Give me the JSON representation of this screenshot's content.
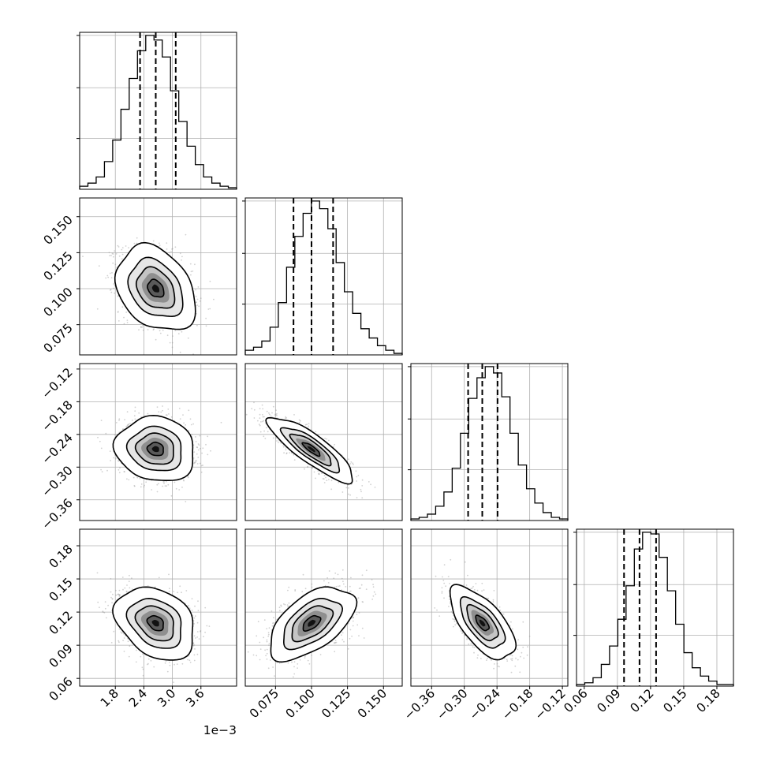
{
  "chart_data": {
    "type": "corner",
    "n_params": 4,
    "exponent_label": "1e−3",
    "params": [
      {
        "range": [
          0.00105,
          0.00435
        ],
        "ticks": [
          0.0018,
          0.0024,
          0.003,
          0.0036
        ],
        "tick_labels": [
          "1.8",
          "2.4",
          "3.0",
          "3.6"
        ],
        "quantiles": [
          0.00232,
          0.00265,
          0.00307
        ],
        "median": 0.00265,
        "sigma": 0.00038
      },
      {
        "range": [
          0.054,
          0.163
        ],
        "ticks": [
          0.075,
          0.1,
          0.125,
          0.15
        ],
        "tick_labels": [
          "0.075",
          "0.100",
          "0.125",
          "0.150"
        ],
        "quantiles": [
          0.0875,
          0.1,
          0.115
        ],
        "median": 0.1,
        "sigma": 0.0135
      },
      {
        "range": [
          -0.398,
          -0.11
        ],
        "ticks": [
          -0.36,
          -0.3,
          -0.24,
          -0.18,
          -0.12
        ],
        "tick_labels": [
          "−0.36",
          "−0.30",
          "−0.24",
          "−0.18",
          "−0.12"
        ],
        "quantiles": [
          -0.293,
          -0.267,
          -0.239
        ],
        "median": -0.267,
        "sigma": 0.027
      },
      {
        "range": [
          0.053,
          0.195
        ],
        "ticks": [
          0.06,
          0.09,
          0.12,
          0.15,
          0.18
        ],
        "tick_labels": [
          "0.06",
          "0.09",
          "0.12",
          "0.15",
          "0.18"
        ],
        "quantiles": [
          0.096,
          0.11,
          0.125
        ],
        "median": 0.11,
        "sigma": 0.015
      }
    ],
    "correlations": [
      {
        "row": 1,
        "col": 0,
        "rho": -0.3
      },
      {
        "row": 2,
        "col": 0,
        "rho": -0.1
      },
      {
        "row": 2,
        "col": 1,
        "rho": -0.85
      },
      {
        "row": 3,
        "col": 0,
        "rho": -0.3
      },
      {
        "row": 3,
        "col": 1,
        "rho": 0.55
      },
      {
        "row": 3,
        "col": 2,
        "rho": -0.65
      }
    ],
    "histograms": [
      [
        2,
        4,
        8,
        18,
        32,
        52,
        72,
        90,
        100,
        97,
        86,
        64,
        44,
        28,
        16,
        8,
        4,
        2,
        1
      ],
      [
        3,
        5,
        9,
        18,
        34,
        57,
        77,
        92,
        100,
        95,
        82,
        60,
        41,
        27,
        17,
        11,
        6,
        3,
        1
      ],
      [
        1,
        2,
        4,
        9,
        18,
        33,
        55,
        77,
        90,
        97,
        93,
        78,
        55,
        35,
        20,
        11,
        5,
        2,
        1
      ],
      [
        1,
        2,
        5,
        13,
        24,
        40,
        60,
        82,
        92,
        91,
        77,
        57,
        37,
        20,
        11,
        6,
        3,
        1,
        1
      ]
    ],
    "grid": true,
    "contour_levels_sigma": [
      0.5,
      1.0,
      1.5,
      2.0
    ]
  }
}
